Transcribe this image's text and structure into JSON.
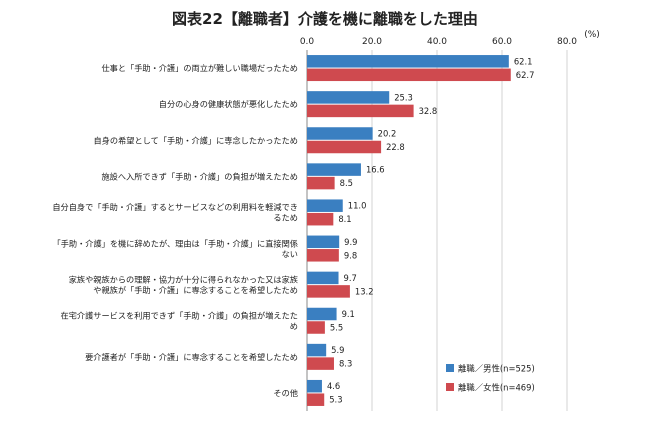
{
  "chart_data": {
    "type": "bar",
    "orientation": "horizontal",
    "title": "図表22【離職者】介護を機に離職をした理由",
    "unit": "(%)",
    "xlim": [
      0,
      80
    ],
    "ticks": [
      "0.0",
      "20.0",
      "40.0",
      "60.0",
      "80.0"
    ],
    "grid": true,
    "legend_position": "bottom-right",
    "categories": [
      [
        "仕事と「手助・介護」の両立が難しい職場だったため"
      ],
      [
        "自分の心身の健康状態が悪化したため"
      ],
      [
        "自身の希望として「手助・介護」に専念したかったため"
      ],
      [
        "施設へ入所できず「手助・介護」の負担が増えたため"
      ],
      [
        "自分自身で「手助・介護」するとサービスなどの利用料を軽減でき",
        "るため"
      ],
      [
        "「手助・介護」を機に辞めたが、理由は「手助・介護」に直接関係",
        "ない"
      ],
      [
        "家族や親族からの理解・協力が十分に得られなかった又は家族",
        "や親族が「手助・介護」に専念することを希望したため"
      ],
      [
        "在宅介護サービスを利用できず「手助・介護」の負担が増えたた",
        "め"
      ],
      [
        "要介護者が「手助・介護」に専念することを希望したため"
      ],
      [
        "その他"
      ]
    ],
    "series": [
      {
        "name": "離職／男性(n=525)",
        "color": "#3a7fc1",
        "values": [
          62.1,
          25.3,
          20.2,
          16.6,
          11.0,
          9.9,
          9.7,
          9.1,
          5.9,
          4.6
        ],
        "labels": [
          "62.1",
          "25.3",
          "20.2",
          "16.6",
          "11.0",
          "9.9",
          "9.7",
          "9.1",
          "5.9",
          "4.6"
        ]
      },
      {
        "name": "離職／女性(n=469)",
        "color": "#cf4a4f",
        "values": [
          62.7,
          32.8,
          22.8,
          8.5,
          8.1,
          9.8,
          13.2,
          5.5,
          8.3,
          5.3
        ],
        "labels": [
          "62.7",
          "32.8",
          "22.8",
          "8.5",
          "8.1",
          "9.8",
          "13.2",
          "5.5",
          "8.3",
          "5.3"
        ]
      }
    ]
  }
}
